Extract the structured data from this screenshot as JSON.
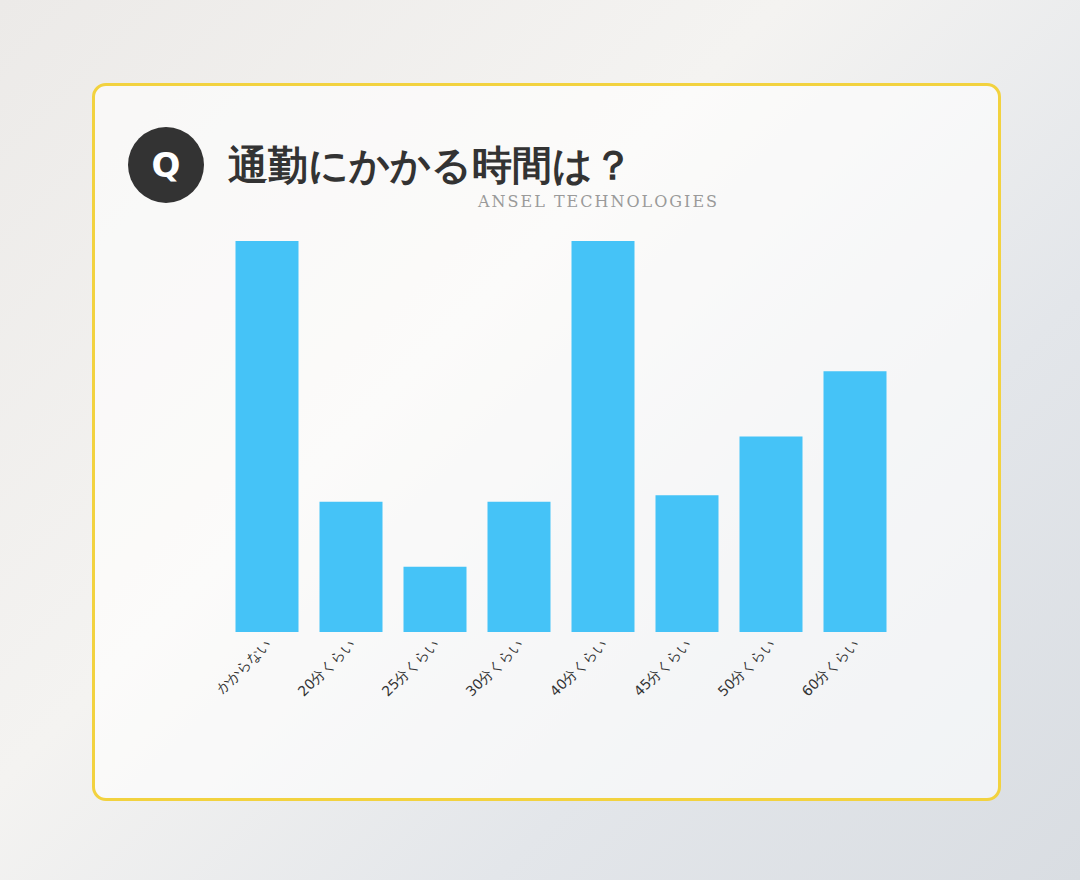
{
  "chart_data": {
    "type": "bar",
    "title": "通勤にかかる時間は？",
    "badge": "Q",
    "watermark": "ANSEL TECHNOLOGIES",
    "categories": [
      "かからない",
      "20分くらい",
      "25分くらい",
      "30分くらい",
      "40分くらい",
      "45分くらい",
      "50分くらい",
      "60分くらい"
    ],
    "values": [
      6,
      2,
      1,
      2,
      6,
      2.1,
      3,
      4
    ],
    "color": "#45c3f7",
    "ylim": [
      0,
      6
    ],
    "tick_labels": "x",
    "grid": false
  }
}
